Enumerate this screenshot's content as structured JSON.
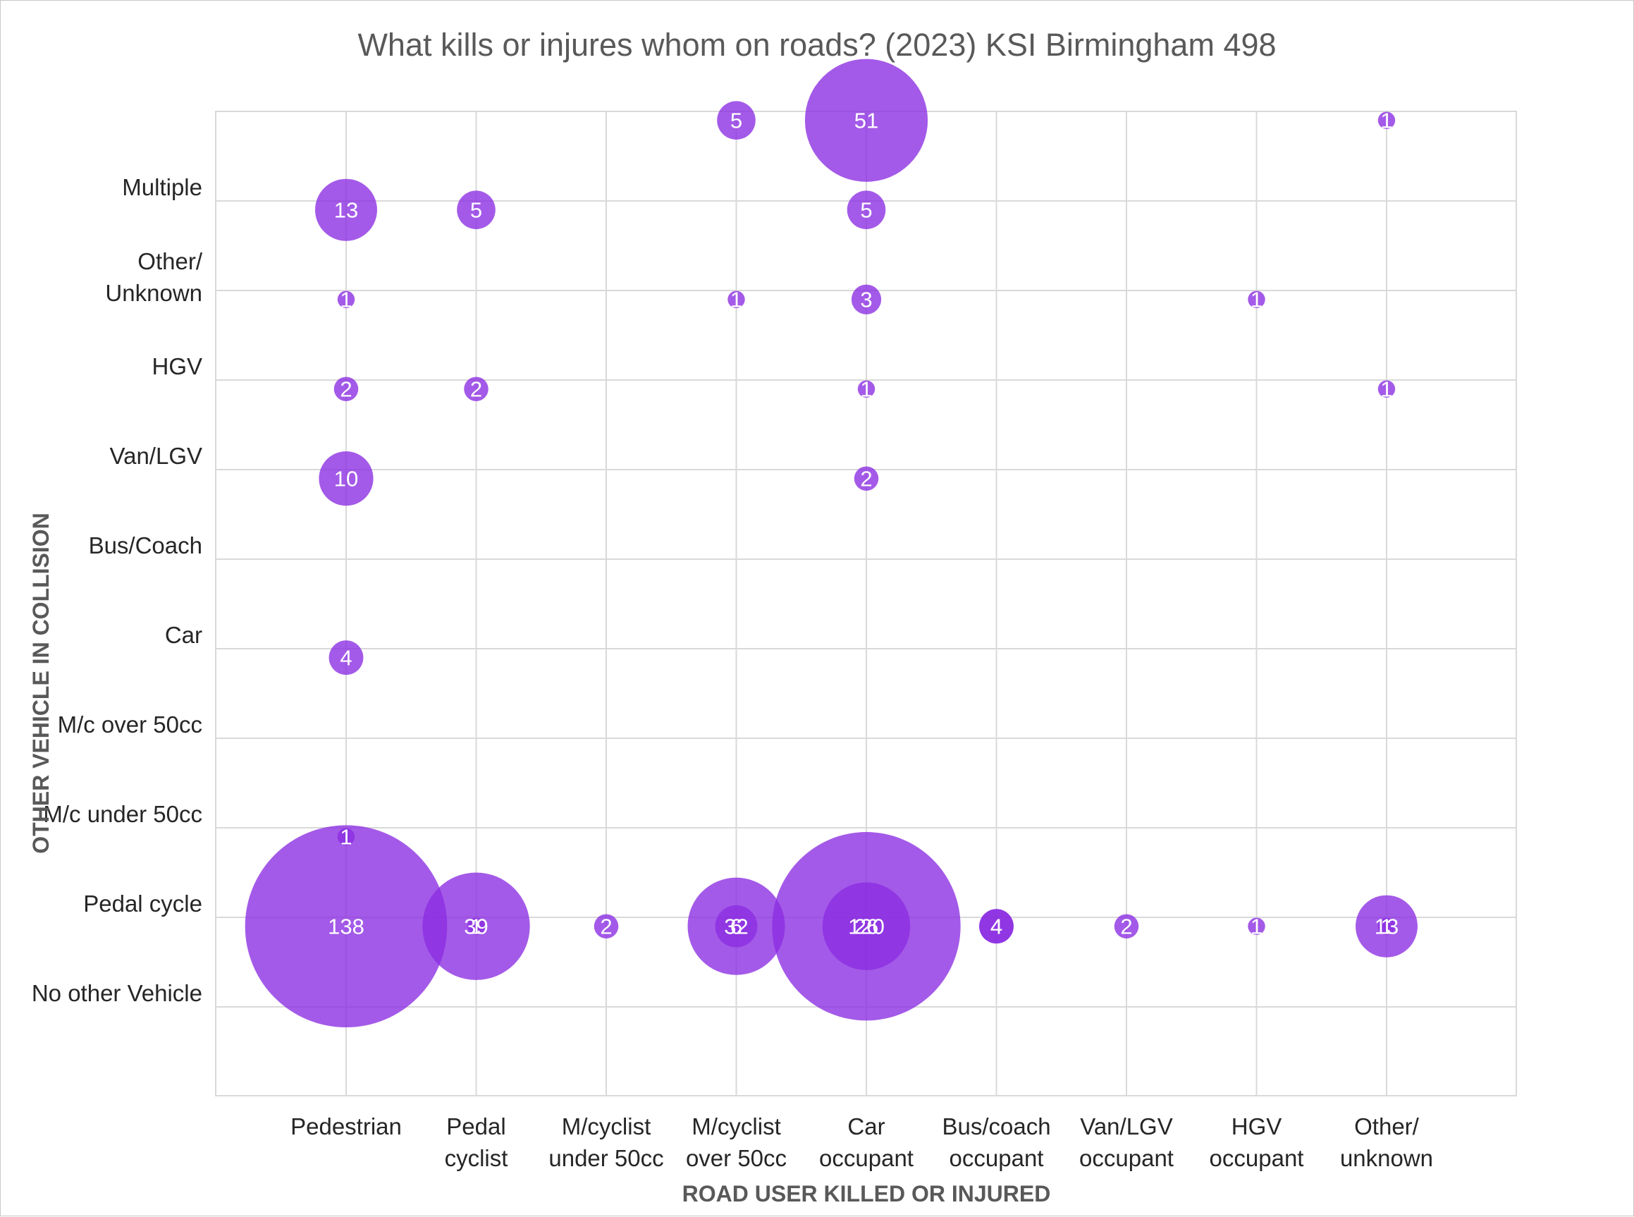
{
  "colors": {
    "bubble": "#8a2be2",
    "grid": "#d9d9d9",
    "text": "#262626",
    "title": "#595959"
  },
  "chart_data": {
    "type": "bubble",
    "title": "What kills or injures whom on roads? (2023) KSI Birmingham 498",
    "xlabel": "ROAD USER KILLED OR INJURED",
    "ylabel": "OTHER VEHICLE IN COLLISION",
    "x_categories": [
      [
        "Pedestrian"
      ],
      [
        "Pedal",
        "cyclist"
      ],
      [
        "M/cyclist",
        "under 50cc"
      ],
      [
        "M/cyclist",
        "over 50cc"
      ],
      [
        "Car",
        "occupant"
      ],
      [
        "Bus/coach",
        "occupant"
      ],
      [
        "Van/LGV",
        "occupant"
      ],
      [
        "HGV",
        "occupant"
      ],
      [
        "Other/",
        "unknown"
      ]
    ],
    "y_categories": [
      [
        "No other Vehicle"
      ],
      [
        "Pedal cycle"
      ],
      [
        "M/c under 50cc"
      ],
      [
        "M/c over 50cc"
      ],
      [
        "Car"
      ],
      [
        "Bus/Coach"
      ],
      [
        "Van/LGV"
      ],
      [
        "HGV"
      ],
      [
        "Other/",
        "Unknown"
      ],
      [
        "Multiple"
      ]
    ],
    "grid": true,
    "points": [
      {
        "x": 0,
        "y": 0.9,
        "value": 138
      },
      {
        "x": 1,
        "y": 0.9,
        "value": 39
      },
      {
        "x": 2,
        "y": 0.9,
        "value": 2
      },
      {
        "x": 3,
        "y": 0.9,
        "value": 32
      },
      {
        "x": 4,
        "y": 0.9,
        "value": 120
      },
      {
        "x": 5,
        "y": 0.9,
        "value": 4
      },
      {
        "x": 6,
        "y": 0.9,
        "value": 2
      },
      {
        "x": 7,
        "y": 0.9,
        "value": 1
      },
      {
        "x": 8,
        "y": 0.9,
        "value": 13
      },
      {
        "x": 3,
        "y": 9.9,
        "value": 5
      },
      {
        "x": 4,
        "y": 9.9,
        "value": 51
      },
      {
        "x": 8,
        "y": 9.9,
        "value": 1
      },
      {
        "x": 0,
        "y": 8.9,
        "value": 13
      },
      {
        "x": 1,
        "y": 8.9,
        "value": 5
      },
      {
        "x": 4,
        "y": 8.9,
        "value": 5
      },
      {
        "x": 0,
        "y": 7.9,
        "value": 1
      },
      {
        "x": 3,
        "y": 7.9,
        "value": 1
      },
      {
        "x": 4,
        "y": 7.9,
        "value": 3
      },
      {
        "x": 7,
        "y": 7.9,
        "value": 1
      },
      {
        "x": 0,
        "y": 6.9,
        "value": 2
      },
      {
        "x": 1,
        "y": 6.9,
        "value": 2
      },
      {
        "x": 4,
        "y": 6.9,
        "value": 1
      },
      {
        "x": 8,
        "y": 6.9,
        "value": 1
      },
      {
        "x": 0,
        "y": 5.9,
        "value": 10
      },
      {
        "x": 4,
        "y": 5.9,
        "value": 2
      },
      {
        "x": 0,
        "y": 3.9,
        "value": 4
      },
      {
        "x": 0,
        "y": 1.9,
        "value": 1
      },
      {
        "x": 1,
        "y": 0.9,
        "value": 1
      },
      {
        "x": 3,
        "y": 0.9,
        "value": 6
      },
      {
        "x": 4,
        "y": 0.9,
        "value": 26
      },
      {
        "x": 5,
        "y": 0.9,
        "value": 4
      },
      {
        "x": 8,
        "y": 0.9,
        "value": 1
      }
    ]
  }
}
